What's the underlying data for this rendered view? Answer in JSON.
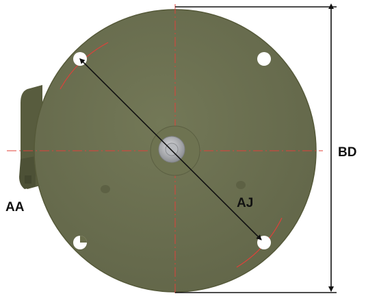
{
  "labels": {
    "aa": "AA",
    "aj": "AJ",
    "bd": "BD"
  },
  "colors": {
    "flange_fill": "#6a6e4c",
    "flange_edge": "#5a5e40",
    "housing_fill": "#5f6446",
    "centerline": "#e0403a",
    "dimension_line": "#111111",
    "hole_fill": "#ffffff",
    "hub_fill": "#9a9ca0"
  },
  "icons": {
    "mounting_hole": "circle-hole-icon",
    "shaft_hub": "shaft-hub-icon"
  }
}
